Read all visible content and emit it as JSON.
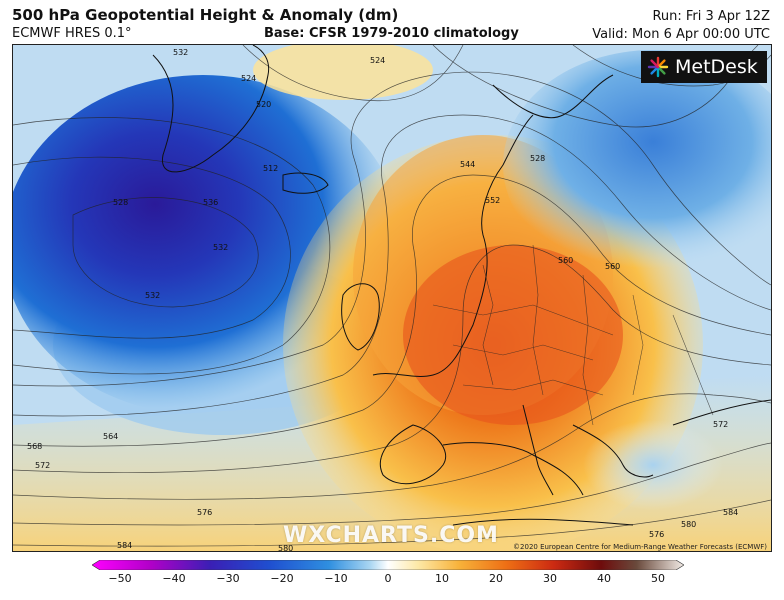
{
  "header": {
    "title": "500 hPa Geopotential Height & Anomaly (dm)",
    "model": "ECMWF HRES 0.1°",
    "base": "Base: CFSR 1979-2010 climatology",
    "run": "Run: Fri 3 Apr 12Z",
    "valid": "Valid: Mon 6 Apr 00:00 UTC"
  },
  "logo": {
    "text": "MetDesk",
    "icon": "metdesk-starburst-icon"
  },
  "watermark": "WXCHARTS.COM",
  "copyright": "©2020 European Centre for Medium-Range Weather Forecasts (ECMWF)",
  "contour_labels": [
    "532",
    "524",
    "520",
    "512",
    "528",
    "524",
    "536",
    "544",
    "552",
    "560",
    "568",
    "572",
    "564",
    "576",
    "580",
    "584",
    "532",
    "528",
    "532",
    "560",
    "572",
    "576",
    "580",
    "584"
  ],
  "colorbar": {
    "ticks": [
      "−50",
      "−40",
      "−30",
      "−20",
      "−10",
      "0",
      "10",
      "20",
      "30",
      "40",
      "50"
    ],
    "colors": [
      "#b400b4",
      "#ff00ff",
      "#6a1fd0",
      "#2b3fc9",
      "#1f72d6",
      "#3aa0e8",
      "#9fd1f0",
      "#ffffff",
      "#ffe9a0",
      "#f8b43a",
      "#f07a16",
      "#e3421a",
      "#b81414",
      "#7a0d0d",
      "#6b4a3a",
      "#c9b3a4",
      "#ffffff"
    ]
  },
  "anomaly_colors": {
    "deep_negative": "#2a1a99",
    "negative": "#1f5fc9",
    "weak_negative": "#7fbde8",
    "neutral": "#fdf6d8",
    "weak_positive": "#fbd36a",
    "positive": "#f39a2a",
    "strong_positive": "#e24a1c"
  }
}
